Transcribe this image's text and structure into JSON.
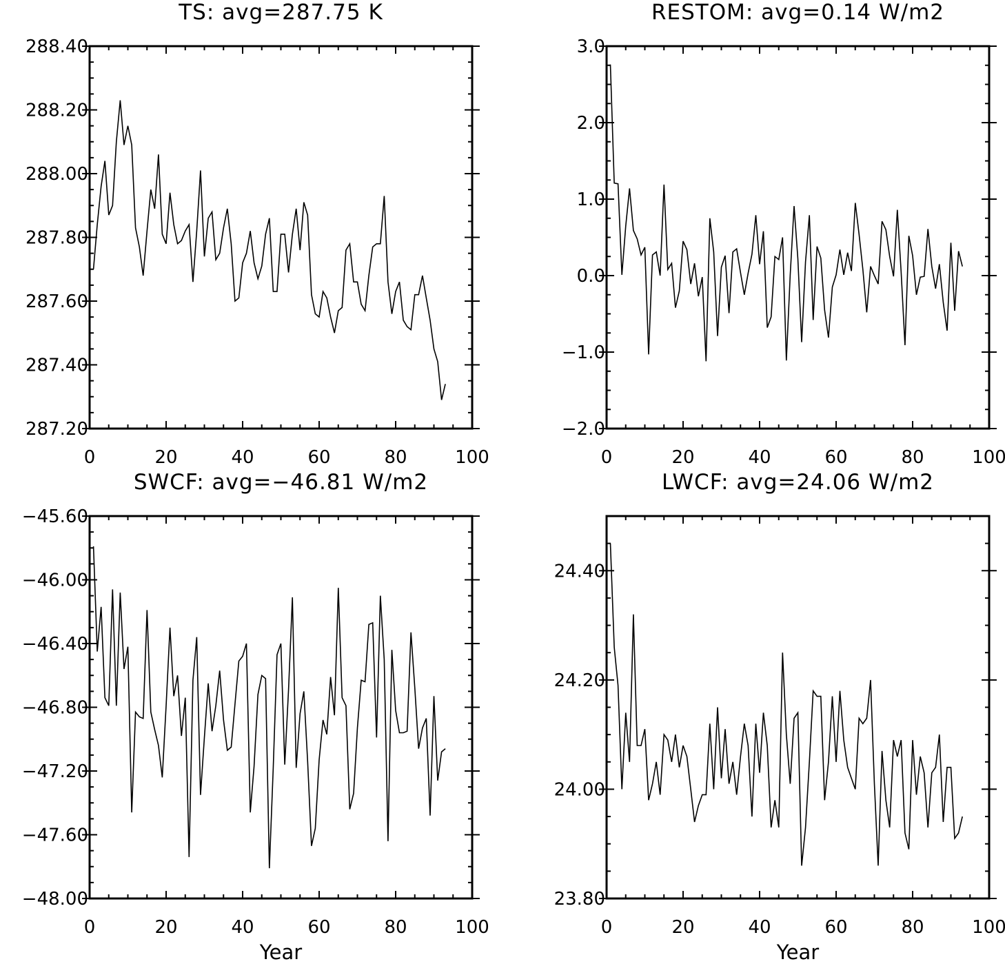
{
  "chart_data": [
    {
      "type": "line",
      "title": "TS: avg=287.75 K",
      "xlabel": "",
      "ylabel": "",
      "xlim": [
        0,
        100
      ],
      "ylim": [
        287.2,
        288.4
      ],
      "xticks": [
        0,
        20,
        40,
        60,
        80,
        100
      ],
      "xtick_labels": [
        "0",
        "20",
        "40",
        "60",
        "80",
        "100"
      ],
      "yticks": [
        287.2,
        287.4,
        287.6,
        287.8,
        288.0,
        288.2,
        288.4
      ],
      "ytick_labels": [
        "287.20",
        "287.40",
        "287.60",
        "287.80",
        "288.00",
        "288.20",
        "288.40"
      ],
      "x_start": 1,
      "values": [
        287.7,
        287.84,
        287.96,
        288.04,
        287.87,
        287.9,
        288.1,
        288.23,
        288.09,
        288.15,
        288.09,
        287.83,
        287.77,
        287.68,
        287.82,
        287.95,
        287.89,
        288.06,
        287.81,
        287.78,
        287.94,
        287.84,
        287.78,
        287.79,
        287.82,
        287.84,
        287.66,
        287.82,
        288.01,
        287.74,
        287.86,
        287.88,
        287.73,
        287.75,
        287.83,
        287.89,
        287.78,
        287.6,
        287.61,
        287.72,
        287.75,
        287.82,
        287.72,
        287.67,
        287.71,
        287.81,
        287.86,
        287.63,
        287.63,
        287.81,
        287.81,
        287.69,
        287.81,
        287.89,
        287.76,
        287.91,
        287.87,
        287.62,
        287.56,
        287.55,
        287.63,
        287.61,
        287.55,
        287.5,
        287.57,
        287.58,
        287.76,
        287.78,
        287.66,
        287.66,
        287.59,
        287.57,
        287.68,
        287.77,
        287.78,
        287.78,
        287.93,
        287.66,
        287.56,
        287.63,
        287.66,
        287.54,
        287.52,
        287.51,
        287.62,
        287.62,
        287.68,
        287.61,
        287.54,
        287.45,
        287.41,
        287.29,
        287.34
      ]
    },
    {
      "type": "line",
      "title": "RESTOM: avg=0.14 W/m2",
      "xlabel": "",
      "ylabel": "",
      "xlim": [
        0,
        100
      ],
      "ylim": [
        -2.0,
        3.0
      ],
      "xticks": [
        0,
        20,
        40,
        60,
        80,
        100
      ],
      "xtick_labels": [
        "0",
        "20",
        "40",
        "60",
        "80",
        "100"
      ],
      "yticks": [
        -2.0,
        -1.0,
        0.0,
        1.0,
        2.0,
        3.0
      ],
      "ytick_labels": [
        "−2.0",
        "−1.0",
        "0.0",
        "1.0",
        "2.0",
        "3.0"
      ],
      "x_start": 1,
      "values": [
        2.76,
        1.21,
        1.2,
        0.01,
        0.65,
        1.14,
        0.59,
        0.48,
        0.27,
        0.37,
        -1.03,
        0.27,
        0.31,
        0.0,
        1.19,
        0.08,
        0.16,
        -0.42,
        -0.2,
        0.45,
        0.34,
        -0.11,
        0.16,
        -0.27,
        -0.02,
        -1.12,
        0.75,
        0.31,
        -0.79,
        0.11,
        0.26,
        -0.49,
        0.31,
        0.35,
        0.04,
        -0.25,
        0.03,
        0.28,
        0.79,
        0.15,
        0.58,
        -0.68,
        -0.54,
        0.25,
        0.21,
        0.5,
        -1.11,
        0.01,
        0.91,
        0.22,
        -0.87,
        0.18,
        0.79,
        -0.58,
        0.38,
        0.23,
        -0.45,
        -0.81,
        -0.15,
        0.01,
        0.34,
        0.01,
        0.3,
        0.06,
        0.95,
        0.54,
        0.08,
        -0.48,
        0.12,
        0.0,
        -0.11,
        0.71,
        0.6,
        0.25,
        -0.01,
        0.86,
        0.05,
        -0.91,
        0.52,
        0.26,
        -0.25,
        -0.02,
        -0.01,
        0.61,
        0.12,
        -0.17,
        0.15,
        -0.35,
        -0.72,
        0.43,
        -0.46,
        0.32,
        0.12
      ]
    },
    {
      "type": "line",
      "title": "SWCF: avg=−46.81 W/m2",
      "xlabel": "Year",
      "ylabel": "",
      "xlim": [
        0,
        100
      ],
      "ylim": [
        -48.0,
        -45.6
      ],
      "xticks": [
        0,
        20,
        40,
        60,
        80,
        100
      ],
      "xtick_labels": [
        "0",
        "20",
        "40",
        "60",
        "80",
        "100"
      ],
      "yticks": [
        -48.0,
        -47.6,
        -47.2,
        -46.8,
        -46.4,
        -46.0,
        -45.6
      ],
      "ytick_labels": [
        "−48.00",
        "−47.60",
        "−47.20",
        "−46.80",
        "−46.40",
        "−46.00",
        "−45.60"
      ],
      "x_start": 1,
      "values": [
        -45.79,
        -46.45,
        -46.17,
        -46.74,
        -46.79,
        -46.06,
        -46.79,
        -46.08,
        -46.56,
        -46.42,
        -47.46,
        -46.83,
        -46.86,
        -46.87,
        -46.19,
        -46.83,
        -46.94,
        -47.04,
        -47.24,
        -46.79,
        -46.3,
        -46.73,
        -46.6,
        -46.98,
        -46.74,
        -47.74,
        -46.63,
        -46.36,
        -47.35,
        -46.99,
        -46.65,
        -46.95,
        -46.79,
        -46.57,
        -46.88,
        -47.07,
        -47.05,
        -46.78,
        -46.51,
        -46.48,
        -46.4,
        -47.46,
        -47.17,
        -46.72,
        -46.6,
        -46.62,
        -47.81,
        -47.18,
        -46.47,
        -46.4,
        -47.16,
        -46.69,
        -46.11,
        -47.18,
        -46.84,
        -46.7,
        -47.14,
        -47.67,
        -47.56,
        -47.13,
        -46.88,
        -46.97,
        -46.61,
        -46.85,
        -46.05,
        -46.74,
        -46.79,
        -47.44,
        -47.34,
        -46.93,
        -46.63,
        -46.64,
        -46.28,
        -46.27,
        -46.99,
        -46.1,
        -46.5,
        -47.64,
        -46.44,
        -46.82,
        -46.96,
        -46.96,
        -46.95,
        -46.33,
        -46.68,
        -47.06,
        -46.93,
        -46.87,
        -47.48,
        -46.73,
        -47.26,
        -47.08,
        -47.06
      ]
    },
    {
      "type": "line",
      "title": "LWCF: avg=24.06 W/m2",
      "xlabel": "Year",
      "ylabel": "",
      "xlim": [
        0,
        100
      ],
      "ylim": [
        23.8,
        24.5
      ],
      "xticks": [
        0,
        20,
        40,
        60,
        80,
        100
      ],
      "xtick_labels": [
        "0",
        "20",
        "40",
        "60",
        "80",
        "100"
      ],
      "yticks": [
        23.8,
        24.0,
        24.2,
        24.4
      ],
      "ytick_labels": [
        "23.80",
        "24.00",
        "24.20",
        "24.40"
      ],
      "x_start": 1,
      "values": [
        24.45,
        24.26,
        24.19,
        24.0,
        24.14,
        24.05,
        24.32,
        24.08,
        24.08,
        24.11,
        23.98,
        24.01,
        24.05,
        23.99,
        24.1,
        24.09,
        24.05,
        24.1,
        24.04,
        24.08,
        24.06,
        24.0,
        23.94,
        23.97,
        23.99,
        23.99,
        24.12,
        24.0,
        24.15,
        24.02,
        24.11,
        24.01,
        24.05,
        23.99,
        24.06,
        24.12,
        24.08,
        23.95,
        24.12,
        24.03,
        24.14,
        24.08,
        23.93,
        23.98,
        23.93,
        24.25,
        24.1,
        24.01,
        24.13,
        24.14,
        23.86,
        23.93,
        24.05,
        24.18,
        24.17,
        24.17,
        23.98,
        24.05,
        24.17,
        24.05,
        24.18,
        24.09,
        24.04,
        24.02,
        24.0,
        24.13,
        24.12,
        24.13,
        24.2,
        24.01,
        23.86,
        24.07,
        23.98,
        23.93,
        24.09,
        24.06,
        24.09,
        23.92,
        23.89,
        24.09,
        23.99,
        24.06,
        24.03,
        23.93,
        24.03,
        24.04,
        24.1,
        23.94,
        24.04,
        24.04,
        23.91,
        23.92,
        23.95
      ]
    }
  ]
}
